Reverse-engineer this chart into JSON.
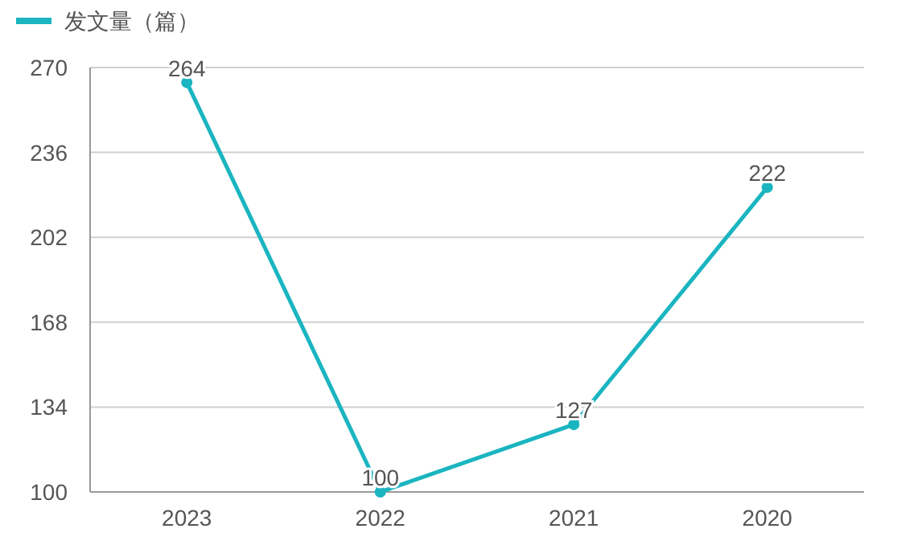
{
  "chart_data": {
    "type": "line",
    "categories": [
      "2023",
      "2022",
      "2021",
      "2020"
    ],
    "series": [
      {
        "name": "发文量（篇）",
        "color": "#1ab5c0",
        "values": [
          264,
          100,
          127,
          222
        ]
      }
    ],
    "ylim": [
      100,
      270
    ],
    "yticks": [
      100,
      134,
      168,
      202,
      236,
      270
    ],
    "grid": "y",
    "legend": "top left",
    "marker": "circle",
    "data_labels": true
  }
}
